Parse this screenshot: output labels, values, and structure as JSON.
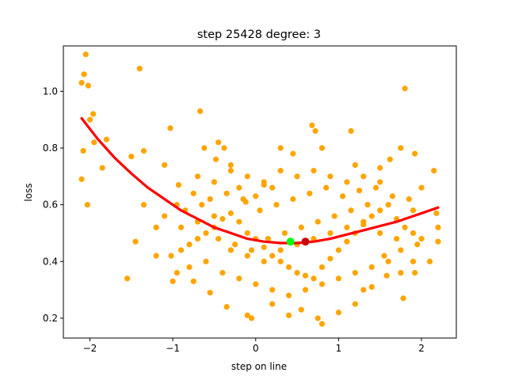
{
  "chart_data": {
    "type": "scatter",
    "title": "step 25428   degree: 3",
    "xlabel": "step on line",
    "ylabel": "loss",
    "xlim": [
      -2.32,
      2.42
    ],
    "ylim": [
      0.13,
      1.16
    ],
    "xticks": [
      -2,
      -1,
      0,
      1,
      2
    ],
    "xtick_labels": [
      "−2",
      "−1",
      "0",
      "1",
      "2"
    ],
    "yticks": [
      0.2,
      0.4,
      0.6,
      0.8,
      1.0
    ],
    "ytick_labels": [
      "0.2",
      "0.4",
      "0.6",
      "0.8",
      "1.0"
    ],
    "grid": false,
    "series": [
      {
        "kind": "points",
        "color": "#ffa500",
        "points": [
          [
            -2.05,
            1.13
          ],
          [
            -2.07,
            1.06
          ],
          [
            -2.1,
            1.03
          ],
          [
            -2.02,
            1.02
          ],
          [
            -1.4,
            1.08
          ],
          [
            -1.96,
            0.92
          ],
          [
            -2.0,
            0.9
          ],
          [
            -2.08,
            0.79
          ],
          [
            -1.95,
            0.82
          ],
          [
            -1.8,
            0.83
          ],
          [
            -2.1,
            0.69
          ],
          [
            -2.03,
            0.6
          ],
          [
            -1.85,
            0.73
          ],
          [
            -1.5,
            0.77
          ],
          [
            -1.35,
            0.79
          ],
          [
            -1.45,
            0.47
          ],
          [
            -1.55,
            0.34
          ],
          [
            -1.35,
            0.6
          ],
          [
            -1.2,
            0.52
          ],
          [
            -1.1,
            0.74
          ],
          [
            -1.03,
            0.87
          ],
          [
            -0.93,
            0.67
          ],
          [
            -0.67,
            0.93
          ],
          [
            -0.62,
            0.8
          ],
          [
            -0.45,
            0.82
          ],
          [
            -0.38,
            0.8
          ],
          [
            -0.3,
            0.74
          ],
          [
            -0.48,
            0.76
          ],
          [
            -0.2,
            0.66
          ],
          [
            -0.12,
            0.61
          ],
          [
            0.0,
            0.63
          ],
          [
            0.1,
            0.67
          ],
          [
            0.2,
            0.66
          ],
          [
            0.3,
            0.8
          ],
          [
            0.45,
            0.78
          ],
          [
            0.68,
            0.88
          ],
          [
            0.72,
            0.86
          ],
          [
            0.8,
            0.8
          ],
          [
            1.15,
            0.86
          ],
          [
            1.2,
            0.74
          ],
          [
            1.5,
            0.73
          ],
          [
            1.62,
            0.76
          ],
          [
            1.75,
            0.8
          ],
          [
            1.8,
            1.01
          ],
          [
            1.92,
            0.78
          ],
          [
            2.15,
            0.72
          ],
          [
            2.0,
            0.66
          ],
          [
            2.18,
            0.57
          ],
          [
            2.2,
            0.52
          ],
          [
            2.2,
            0.47
          ],
          [
            2.1,
            0.4
          ],
          [
            1.9,
            0.4
          ],
          [
            1.92,
            0.36
          ],
          [
            1.78,
            0.27
          ],
          [
            1.75,
            0.36
          ],
          [
            1.58,
            0.35
          ],
          [
            1.4,
            0.31
          ],
          [
            1.3,
            0.3
          ],
          [
            1.2,
            0.25
          ],
          [
            1.0,
            0.22
          ],
          [
            0.8,
            0.18
          ],
          [
            0.75,
            0.2
          ],
          [
            0.55,
            0.23
          ],
          [
            0.4,
            0.21
          ],
          [
            0.2,
            0.25
          ],
          [
            -0.05,
            0.2
          ],
          [
            -0.1,
            0.21
          ],
          [
            -0.35,
            0.24
          ],
          [
            -0.55,
            0.29
          ],
          [
            -0.75,
            0.33
          ],
          [
            -0.95,
            0.36
          ],
          [
            -1.0,
            0.33
          ],
          [
            -1.2,
            0.42
          ],
          [
            -1.02,
            0.42
          ],
          [
            -0.9,
            0.44
          ],
          [
            -0.8,
            0.46
          ],
          [
            -0.7,
            0.48
          ],
          [
            -0.6,
            0.5
          ],
          [
            -0.5,
            0.52
          ],
          [
            -0.4,
            0.55
          ],
          [
            -0.3,
            0.57
          ],
          [
            -0.2,
            0.54
          ],
          [
            -0.1,
            0.5
          ],
          [
            0.0,
            0.48
          ],
          [
            0.1,
            0.45
          ],
          [
            0.2,
            0.42
          ],
          [
            0.3,
            0.4
          ],
          [
            0.4,
            0.38
          ],
          [
            0.5,
            0.36
          ],
          [
            0.6,
            0.35
          ],
          [
            0.7,
            0.34
          ],
          [
            0.8,
            0.38
          ],
          [
            0.9,
            0.41
          ],
          [
            1.0,
            0.44
          ],
          [
            1.1,
            0.47
          ],
          [
            1.2,
            0.5
          ],
          [
            1.3,
            0.53
          ],
          [
            1.4,
            0.56
          ],
          [
            1.5,
            0.58
          ],
          [
            1.6,
            0.6
          ],
          [
            1.7,
            0.55
          ],
          [
            1.8,
            0.52
          ],
          [
            1.9,
            0.5
          ],
          [
            2.0,
            0.48
          ],
          [
            1.85,
            0.62
          ],
          [
            1.65,
            0.63
          ],
          [
            1.45,
            0.66
          ],
          [
            1.25,
            0.65
          ],
          [
            1.05,
            0.63
          ],
          [
            0.85,
            0.66
          ],
          [
            0.65,
            0.64
          ],
          [
            0.45,
            0.62
          ],
          [
            0.25,
            0.6
          ],
          [
            0.05,
            0.58
          ],
          [
            -0.15,
            0.62
          ],
          [
            -0.35,
            0.64
          ],
          [
            -0.55,
            0.62
          ],
          [
            -0.75,
            0.64
          ],
          [
            -0.95,
            0.6
          ],
          [
            -1.1,
            0.56
          ],
          [
            -0.85,
            0.58
          ],
          [
            -0.65,
            0.6
          ],
          [
            -0.45,
            0.48
          ],
          [
            -0.25,
            0.46
          ],
          [
            -0.05,
            0.44
          ],
          [
            0.15,
            0.48
          ],
          [
            0.35,
            0.5
          ],
          [
            0.55,
            0.52
          ],
          [
            0.75,
            0.54
          ],
          [
            0.95,
            0.56
          ],
          [
            1.15,
            0.58
          ],
          [
            1.35,
            0.6
          ],
          [
            1.55,
            0.42
          ],
          [
            1.75,
            0.44
          ],
          [
            1.95,
            0.46
          ],
          [
            -0.7,
            0.7
          ],
          [
            -0.5,
            0.68
          ],
          [
            -0.3,
            0.72
          ],
          [
            -0.1,
            0.7
          ],
          [
            0.1,
            0.68
          ],
          [
            0.3,
            0.72
          ],
          [
            0.5,
            0.7
          ],
          [
            0.7,
            0.72
          ],
          [
            0.9,
            0.7
          ],
          [
            1.1,
            0.68
          ],
          [
            1.3,
            0.7
          ],
          [
            1.5,
            0.68
          ],
          [
            -0.8,
            0.38
          ],
          [
            -0.6,
            0.4
          ],
          [
            -0.4,
            0.36
          ],
          [
            -0.2,
            0.34
          ],
          [
            0.0,
            0.32
          ],
          [
            0.2,
            0.3
          ],
          [
            0.4,
            0.28
          ],
          [
            0.6,
            0.3
          ],
          [
            0.8,
            0.32
          ],
          [
            1.0,
            0.34
          ],
          [
            1.2,
            0.36
          ],
          [
            1.4,
            0.38
          ],
          [
            1.6,
            0.4
          ],
          [
            -0.9,
            0.52
          ],
          [
            -0.7,
            0.54
          ],
          [
            -0.5,
            0.56
          ],
          [
            -0.3,
            0.44
          ],
          [
            -0.1,
            0.42
          ],
          [
            0.1,
            0.4
          ],
          [
            0.3,
            0.44
          ],
          [
            0.5,
            0.46
          ],
          [
            0.7,
            0.48
          ],
          [
            0.9,
            0.5
          ],
          [
            1.1,
            0.52
          ],
          [
            1.3,
            0.54
          ],
          [
            1.5,
            0.5
          ],
          [
            1.7,
            0.48
          ],
          [
            1.9,
            0.58
          ]
        ]
      },
      {
        "kind": "curve",
        "color": "#ff0000",
        "x": [
          -2.1,
          -1.9,
          -1.7,
          -1.5,
          -1.3,
          -1.1,
          -0.9,
          -0.7,
          -0.5,
          -0.3,
          -0.1,
          0.1,
          0.3,
          0.5,
          0.7,
          0.9,
          1.1,
          1.3,
          1.5,
          1.7,
          1.9,
          2.1,
          2.2
        ],
        "y": [
          0.905,
          0.83,
          0.765,
          0.71,
          0.66,
          0.62,
          0.58,
          0.55,
          0.52,
          0.5,
          0.48,
          0.47,
          0.465,
          0.465,
          0.47,
          0.48,
          0.495,
          0.51,
          0.525,
          0.54,
          0.56,
          0.58,
          0.59
        ]
      },
      {
        "kind": "marker",
        "color": "#00ff00",
        "points": [
          [
            0.42,
            0.47
          ]
        ]
      },
      {
        "kind": "marker",
        "color": "#cc0000",
        "points": [
          [
            0.6,
            0.47
          ]
        ]
      }
    ]
  }
}
